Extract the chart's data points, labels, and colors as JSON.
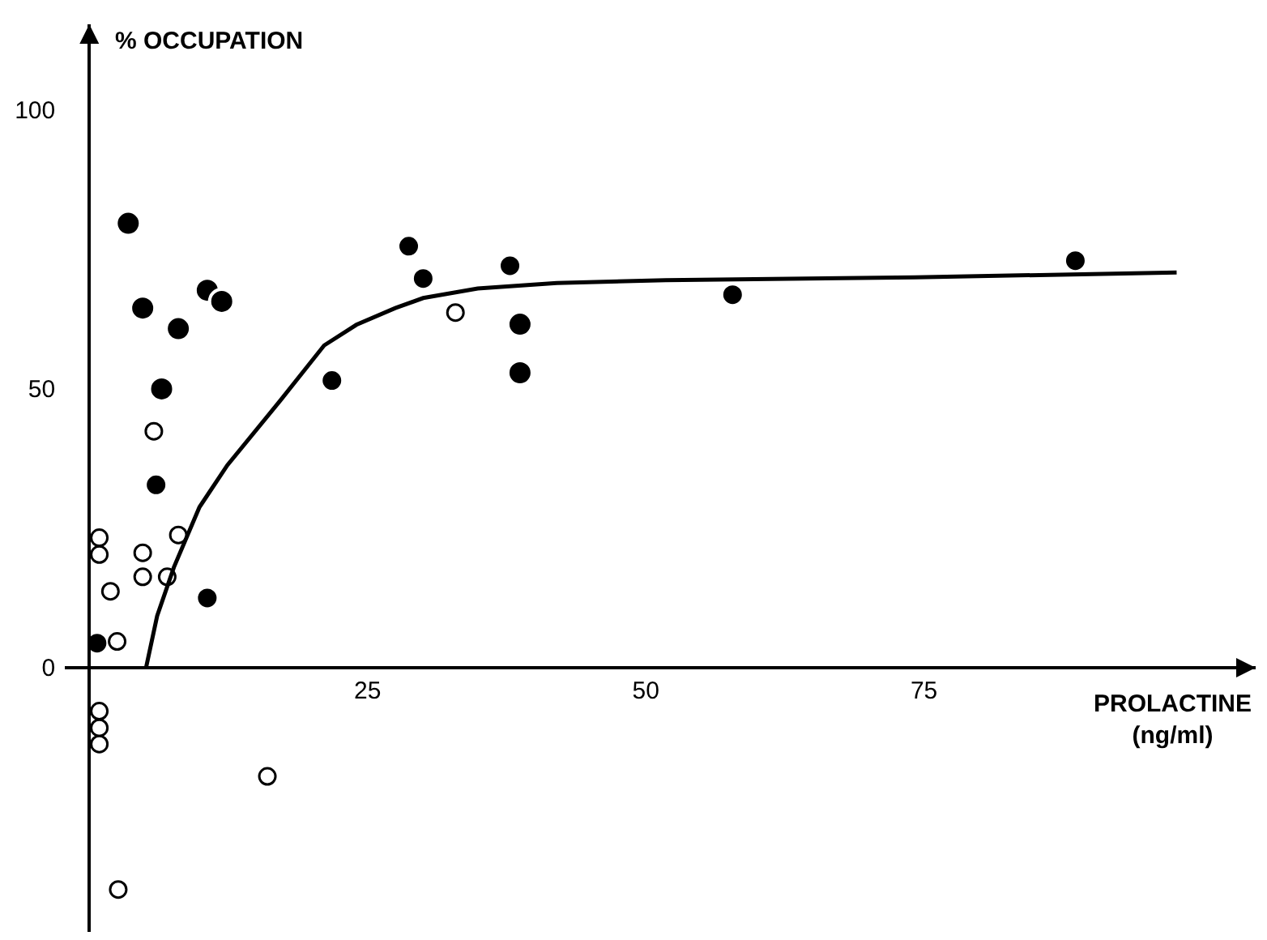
{
  "chart_data": {
    "type": "scatter",
    "xlabel": "PROLACTINE\n(ng/ml)",
    "ylabel": "% OCCUPATION",
    "xlim": [
      -2.2,
      104.8
    ],
    "ylim": [
      -47.4,
      115.4
    ],
    "xticks": [
      25,
      50,
      75
    ],
    "yticks": [
      0,
      50,
      100
    ],
    "marker": "circle",
    "series": [
      {
        "color": "#000000",
        "x": [
          0.7,
          6.0,
          10.6,
          21.8,
          28.7,
          30.0,
          37.8,
          57.8,
          88.6
        ],
        "values": [
          4.4,
          32.8,
          12.5,
          51.5,
          75.6,
          69.8,
          72.1,
          66.9,
          73.0
        ]
      },
      {
        "color": "#000000",
        "x": [
          3.5,
          4.8,
          8.0,
          6.5,
          10.6,
          11.9,
          38.7,
          38.7
        ],
        "values": [
          79.7,
          64.5,
          60.8,
          50.0,
          67.7,
          65.7,
          61.6,
          52.9
        ]
      },
      {
        "color": "#ffffff",
        "x": [
          0.9,
          0.9,
          1.9,
          2.5,
          4.8,
          4.8,
          5.8,
          7.0,
          8.0,
          32.9,
          0.9,
          0.9,
          0.9,
          16.0,
          2.6
        ],
        "values": [
          23.3,
          20.3,
          13.7,
          4.7,
          20.6,
          16.3,
          42.4,
          16.3,
          23.8,
          63.7,
          -7.8,
          -10.8,
          -13.7,
          -19.5,
          -39.8
        ]
      },
      {
        "type": "line",
        "color": "#000000",
        "marker": "none",
        "line_style": "solid",
        "x": [
          5.1,
          6.1,
          7.6,
          9.9,
          12.4,
          17.2,
          21.1,
          24.0,
          27.5,
          30.0,
          34.9,
          42.0,
          51.8,
          74.2,
          97.7
        ],
        "values": [
          0,
          9.3,
          18,
          28.8,
          36.3,
          48,
          57.8,
          61.5,
          64.5,
          66.3,
          68,
          69.0,
          69.5,
          70,
          70.9
        ]
      }
    ]
  }
}
